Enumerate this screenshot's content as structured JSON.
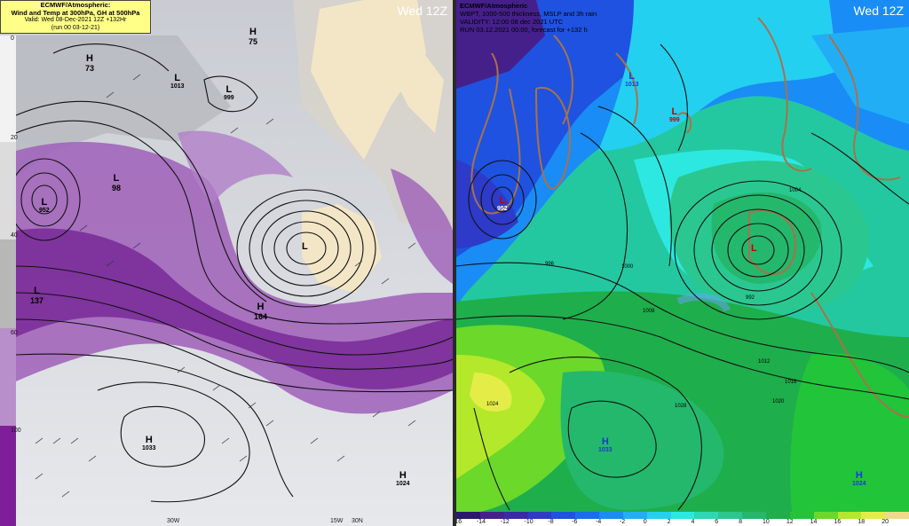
{
  "left": {
    "header": {
      "line1": "ECMWF/Atmospheric:",
      "line2": "Wind and Temp at 300hPa, GH at 500hPa",
      "line3": "Valid: Wed 08-Dec-2021 12Z +132Hr",
      "line4": "(run 00 03-12-21)"
    },
    "day_label": "Wed 12Z",
    "colorbar_ticks": [
      "0",
      "20",
      "40",
      "60",
      "100"
    ],
    "colorbar_colors": [
      "#f4f4f4",
      "#d8d8d8",
      "#bcbcbc",
      "#a2a2a2",
      "#888888",
      "#c9a6d6",
      "#b07cc4",
      "#9a58b4",
      "#8c3aa6",
      "#7e1f99"
    ],
    "labels": [
      {
        "text": "H",
        "sub": "73"
      },
      {
        "text": "L",
        "sub": "952"
      },
      {
        "text": "L",
        "sub": "999"
      },
      {
        "text": "H",
        "sub": "75"
      },
      {
        "text": "L",
        "sub": "1013"
      },
      {
        "text": "L",
        "sub": "98"
      },
      {
        "text": "L",
        "sub": ""
      },
      {
        "text": "L",
        "sub": "137"
      },
      {
        "text": "H",
        "sub": "164"
      },
      {
        "text": "H",
        "sub": "1033"
      },
      {
        "text": "H",
        "sub": "1024"
      }
    ],
    "bottom_labels": [
      "30W",
      "15W",
      "30N"
    ]
  },
  "right": {
    "header": {
      "line1": "ECMWF/Atmospheric",
      "line2": "WBPT, 1000-500 thickness, MSLP and 3h rain",
      "line3": "VALIDITY: 12:00 08 dec 2021 UTC",
      "line4": "RUN 03.12.2021 00:00, forecast for +132 h"
    },
    "day_label": "Wed 12Z",
    "colorbar_ticks": [
      "-16",
      "-14",
      "-12",
      "-10",
      "-8",
      "-6",
      "-4",
      "-2",
      "0",
      "2",
      "4",
      "6",
      "8",
      "10",
      "12",
      "14",
      "16",
      "18",
      "20"
    ],
    "colorbar_colors": [
      "#2b1a6b",
      "#45208a",
      "#3a2aa8",
      "#2e3ac8",
      "#1f52e0",
      "#1a6df0",
      "#1a8cf5",
      "#22aef5",
      "#24d0f0",
      "#2ce8e0",
      "#2cd8b4",
      "#2ac890",
      "#24b86c",
      "#1fae4c",
      "#22c43a",
      "#6cd82a",
      "#b4e82a",
      "#e4ec48",
      "#efd98a"
    ],
    "labels": [
      {
        "text": "L",
        "sub": "952"
      },
      {
        "text": "L",
        "sub": "999"
      },
      {
        "text": "L",
        "sub": "1013"
      },
      {
        "text": "L",
        "sub": ""
      },
      {
        "text": "H",
        "sub": "1033"
      },
      {
        "text": "H",
        "sub": "1024"
      }
    ],
    "isobars": [
      "1004",
      "1008",
      "1012",
      "1016",
      "1020",
      "1024",
      "1028",
      "992",
      "996",
      "1000"
    ]
  }
}
